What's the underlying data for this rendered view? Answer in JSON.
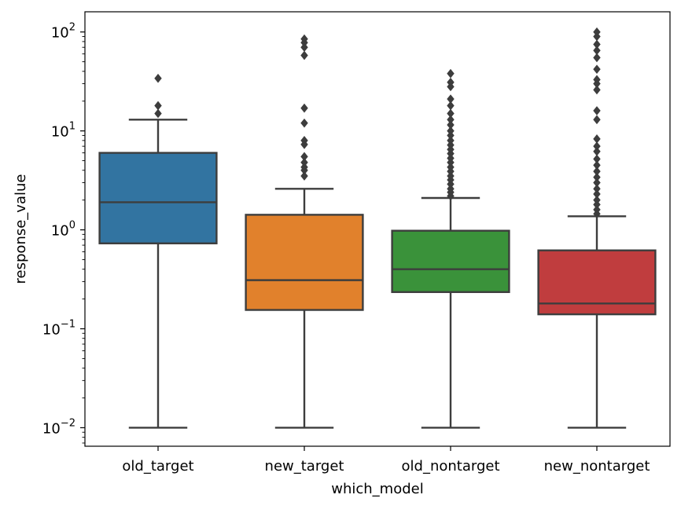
{
  "chart_data": {
    "type": "box",
    "xlabel": "which_model",
    "ylabel": "response_value",
    "yscale": "log",
    "ylim": [
      0.0065,
      160
    ],
    "yticks": [
      {
        "value": 0.01,
        "base": "10",
        "exp": "−2"
      },
      {
        "value": 0.1,
        "base": "10",
        "exp": "−1"
      },
      {
        "value": 1,
        "base": "10",
        "exp": "0"
      },
      {
        "value": 10,
        "base": "10",
        "exp": "1"
      },
      {
        "value": 100,
        "base": "10",
        "exp": "2"
      }
    ],
    "grid": false,
    "legend": "none",
    "categories": [
      "old_target",
      "new_target",
      "old_nontarget",
      "new_nontarget"
    ],
    "boxes": [
      {
        "category": "old_target",
        "color": "#3274a1",
        "whisker_low": 0.01,
        "q1": 0.73,
        "median": 1.9,
        "q3": 6.0,
        "whisker_high": 13,
        "outliers": [
          15,
          18,
          34
        ]
      },
      {
        "category": "new_target",
        "color": "#e1812c",
        "whisker_low": 0.01,
        "q1": 0.155,
        "median": 0.31,
        "q3": 1.42,
        "whisker_high": 2.6,
        "outliers": [
          3.5,
          4.0,
          4.3,
          4.8,
          5.5,
          7.3,
          8.0,
          12,
          17,
          58,
          70,
          78,
          85
        ]
      },
      {
        "category": "old_nontarget",
        "color": "#3a923a",
        "whisker_low": 0.01,
        "q1": 0.235,
        "median": 0.4,
        "q3": 0.98,
        "whisker_high": 2.1,
        "outliers": [
          2.2,
          2.4,
          2.6,
          2.9,
          3.2,
          3.5,
          3.9,
          4.3,
          4.8,
          5.3,
          5.9,
          6.5,
          7.2,
          8.0,
          9.0,
          10,
          11.5,
          13,
          15,
          18,
          21,
          28,
          31,
          38
        ]
      },
      {
        "category": "new_nontarget",
        "color": "#c03d3e",
        "whisker_low": 0.01,
        "q1": 0.14,
        "median": 0.18,
        "q3": 0.62,
        "whisker_high": 1.37,
        "outliers": [
          1.45,
          1.6,
          1.8,
          2.0,
          2.3,
          2.6,
          3.0,
          3.4,
          3.9,
          4.5,
          5.2,
          6.2,
          7.0,
          8.3,
          13,
          16,
          26,
          30,
          33,
          42,
          55,
          65,
          75,
          90,
          100
        ]
      }
    ]
  }
}
